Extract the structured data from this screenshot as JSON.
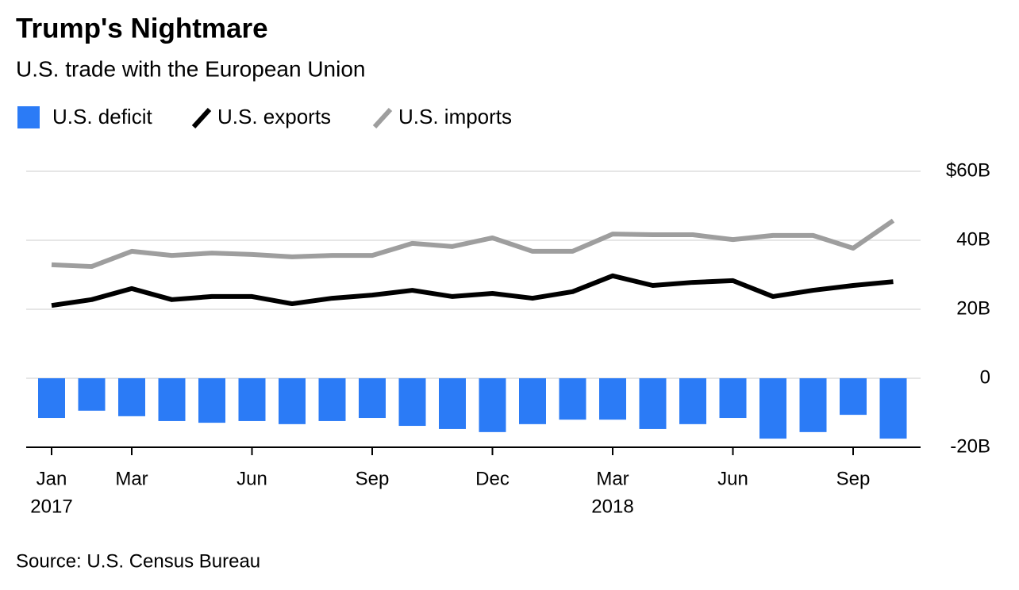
{
  "chart_data": {
    "type": "bar-line",
    "title": "Trump's Nightmare",
    "subtitle": "U.S. trade with the European Union",
    "source": "Source: U.S. Census Bureau",
    "categories": [
      "Jan",
      null,
      "Mar",
      null,
      null,
      "Jun",
      null,
      null,
      "Sep",
      null,
      null,
      "Dec",
      null,
      null,
      "Mar",
      null,
      null,
      "Jun",
      null,
      null,
      "Sep",
      null
    ],
    "years": [
      "2017",
      null,
      null,
      null,
      null,
      null,
      null,
      null,
      null,
      null,
      null,
      null,
      null,
      null,
      "2018",
      null,
      null,
      null,
      null,
      null,
      null,
      null
    ],
    "series": [
      {
        "name": "U.S. deficit",
        "type": "bar",
        "color": "#2b7bf6",
        "values": [
          -11.5,
          -9.4,
          -11.0,
          -12.4,
          -12.9,
          -12.4,
          -13.3,
          -12.4,
          -11.5,
          -13.8,
          -14.7,
          -15.6,
          -13.3,
          -12.0,
          -12.0,
          -14.7,
          -13.3,
          -11.5,
          -17.5,
          -15.6,
          -10.6,
          -17.5
        ]
      },
      {
        "name": "U.S. exports",
        "type": "line",
        "color": "#000000",
        "values": [
          21.1,
          22.8,
          26.0,
          22.8,
          23.7,
          23.7,
          21.6,
          23.2,
          24.1,
          25.5,
          23.7,
          24.6,
          23.2,
          25.1,
          29.7,
          26.9,
          27.8,
          28.3,
          23.7,
          25.5,
          26.9,
          28.0
        ]
      },
      {
        "name": "U.S. imports",
        "type": "line",
        "color": "#9e9e9e",
        "values": [
          32.9,
          32.4,
          36.8,
          35.6,
          36.3,
          35.9,
          35.2,
          35.6,
          35.6,
          39.1,
          38.2,
          40.7,
          36.8,
          36.8,
          41.8,
          41.6,
          41.6,
          40.2,
          41.4,
          41.4,
          37.7,
          45.7
        ]
      }
    ],
    "ylim": [
      -20,
      60
    ],
    "yticks": [
      {
        "value": 60,
        "label": "$60B"
      },
      {
        "value": 40,
        "label": "40B"
      },
      {
        "value": 20,
        "label": "20B"
      },
      0,
      {
        "value": -20,
        "label": "-20B"
      }
    ],
    "grid": true
  }
}
